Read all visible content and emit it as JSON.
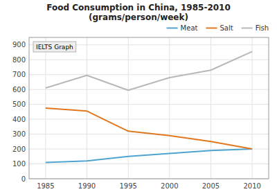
{
  "chart_data": {
    "type": "line",
    "title": "Food Consumption in China, 1985-2010\n(grams/person/week)",
    "x": [
      1985,
      1990,
      1995,
      2000,
      2005,
      2010
    ],
    "series": [
      {
        "name": "Meat",
        "color": "#4fa3d1",
        "values": [
          110,
          120,
          150,
          170,
          190,
          200
        ]
      },
      {
        "name": "Salt",
        "color": "#e07820",
        "values": [
          475,
          455,
          320,
          290,
          250,
          200
        ]
      },
      {
        "name": "Fish",
        "color": "#b8b8b8",
        "values": [
          610,
          695,
          595,
          680,
          730,
          855
        ]
      }
    ],
    "xlim": [
      1983,
      2012
    ],
    "ylim": [
      0,
      950
    ],
    "xticks": [
      1985,
      1990,
      1995,
      2000,
      2005,
      2010
    ],
    "yticks": [
      0,
      100,
      200,
      300,
      400,
      500,
      600,
      700,
      800,
      900
    ],
    "grid": true,
    "legend": "upper right",
    "annotation": "IELTS Graph"
  }
}
